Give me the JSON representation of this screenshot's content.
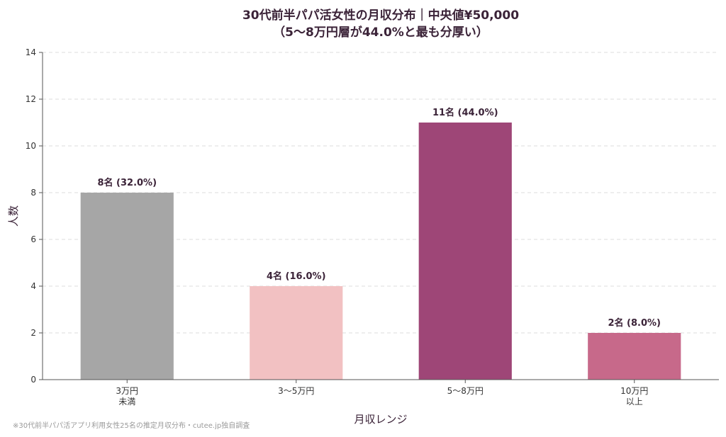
{
  "chart_data": {
    "type": "bar",
    "title_lines": [
      "30代前半パパ活女性の月収分布｜中央値¥50,000",
      "（5〜8万円層が44.0%と最も分厚い）"
    ],
    "xlabel": "月収レンジ",
    "ylabel": "人数",
    "ylim": [
      0,
      14
    ],
    "yticks": [
      0,
      2,
      4,
      6,
      8,
      10,
      12,
      14
    ],
    "grid": true,
    "categories": [
      [
        "3万円",
        "未満"
      ],
      [
        "3〜5万円"
      ],
      [
        "5〜8万円"
      ],
      [
        "10万円",
        "以上"
      ]
    ],
    "values": [
      8,
      4,
      11,
      2
    ],
    "value_labels": [
      "8名 (32.0%)",
      "4名 (16.0%)",
      "11名 (44.0%)",
      "2名 (8.0%)"
    ],
    "colors": [
      "#a6a6a6",
      "#f2c1c2",
      "#9e4677",
      "#c7698a"
    ]
  },
  "footnote": "※30代前半パパ活アプリ利用女性25名の推定月収分布・cutee.jp独自調査"
}
